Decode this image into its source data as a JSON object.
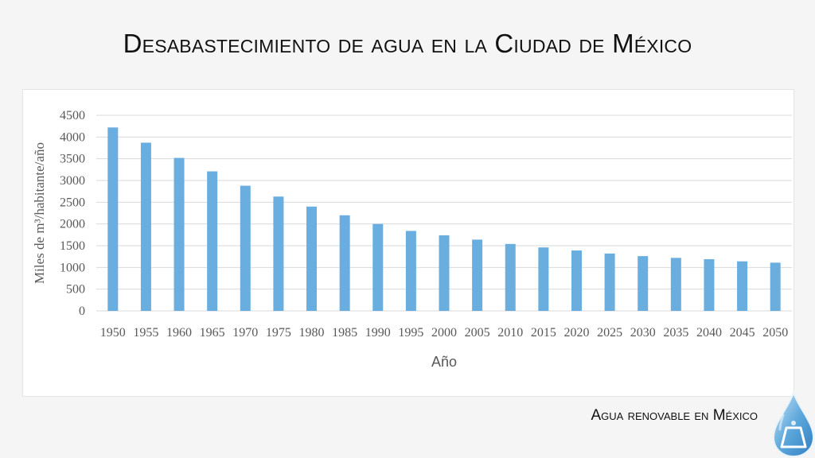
{
  "slide": {
    "title": "Desabastecimiento de agua en la Ciudad de México",
    "subtitle": "Agua renovable en México"
  },
  "colors": {
    "bar": "#6aaee0",
    "grid": "#d9d9d9",
    "axis_text": "#595959",
    "background": "#f5f5f5"
  },
  "logo": {
    "icon": "water-drop-logo-icon"
  },
  "chart_data": {
    "type": "bar",
    "xlabel": "Año",
    "ylabel": "Miles de m³/habitante/año",
    "ylim": [
      0,
      4500
    ],
    "yticks": [
      0,
      500,
      1000,
      1500,
      2000,
      2500,
      3000,
      3500,
      4000,
      4500
    ],
    "grid": true,
    "legend": "none",
    "categories": [
      "1950",
      "1955",
      "1960",
      "1965",
      "1970",
      "1975",
      "1980",
      "1985",
      "1990",
      "1995",
      "2000",
      "2005",
      "2010",
      "2015",
      "2020",
      "2025",
      "2030",
      "2035",
      "2040",
      "2045",
      "2050"
    ],
    "values": [
      4220,
      3870,
      3520,
      3210,
      2880,
      2630,
      2400,
      2200,
      2000,
      1840,
      1740,
      1640,
      1540,
      1460,
      1390,
      1320,
      1260,
      1220,
      1190,
      1140,
      1110
    ]
  }
}
